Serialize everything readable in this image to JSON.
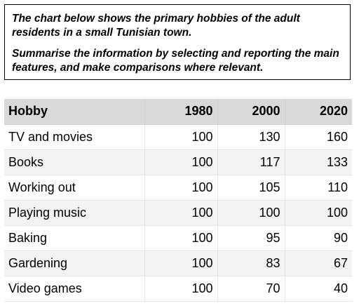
{
  "prompt": {
    "line1": "The chart below shows the primary hobbies of the adult residents in a small Tunisian town.",
    "line2": "Summarise the information by selecting and reporting the main features, and make comparisons where relevant."
  },
  "table": {
    "headers": [
      "Hobby",
      "1980",
      "2000",
      "2020"
    ],
    "rows": [
      {
        "hobby": "TV and movies",
        "y1980": "100",
        "y2000": "130",
        "y2020": "160"
      },
      {
        "hobby": "Books",
        "y1980": "100",
        "y2000": "117",
        "y2020": "133"
      },
      {
        "hobby": "Working out",
        "y1980": "100",
        "y2000": "105",
        "y2020": "110"
      },
      {
        "hobby": "Playing music",
        "y1980": "100",
        "y2000": "100",
        "y2020": "100"
      },
      {
        "hobby": "Baking",
        "y1980": "100",
        "y2000": "95",
        "y2020": "90"
      },
      {
        "hobby": "Gardening",
        "y1980": "100",
        "y2000": "83",
        "y2020": "67"
      },
      {
        "hobby": "Video games",
        "y1980": "100",
        "y2000": "70",
        "y2020": "40"
      }
    ]
  }
}
